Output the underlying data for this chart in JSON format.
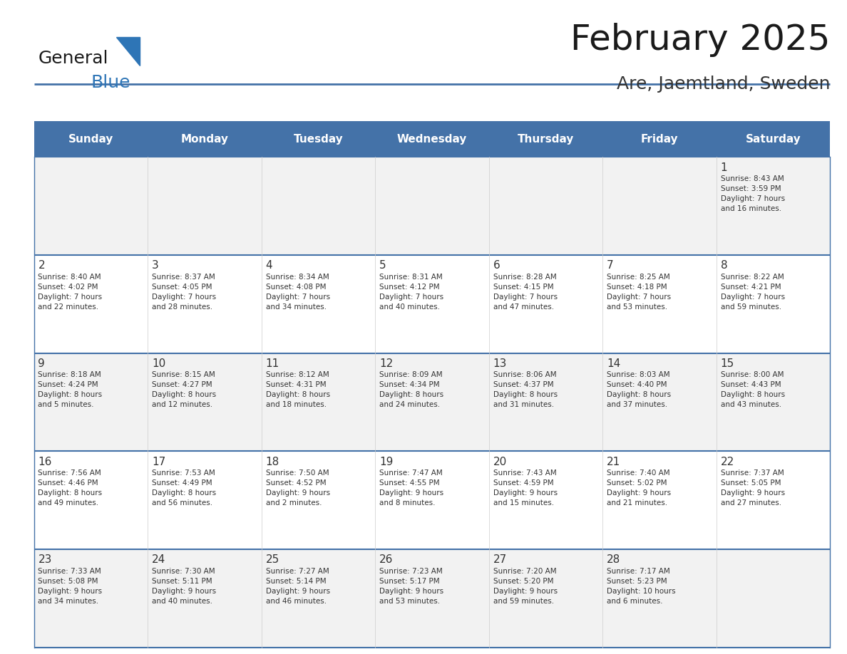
{
  "title": "February 2025",
  "subtitle": "Are, Jaemtland, Sweden",
  "logo_text_general": "General",
  "logo_text_blue": "Blue",
  "days_of_week": [
    "Sunday",
    "Monday",
    "Tuesday",
    "Wednesday",
    "Thursday",
    "Friday",
    "Saturday"
  ],
  "header_bg_color": "#4472a8",
  "header_text_color": "#ffffff",
  "cell_bg_color_light": "#f2f2f2",
  "cell_bg_color_white": "#ffffff",
  "border_color": "#4472a8",
  "day_num_color": "#333333",
  "info_text_color": "#333333",
  "title_color": "#1a1a1a",
  "subtitle_color": "#333333",
  "logo_general_color": "#1a1a1a",
  "logo_blue_color": "#2e75b6",
  "logo_triangle_color": "#2e75b6",
  "weeks": [
    {
      "days": [
        {
          "day": null,
          "info": null
        },
        {
          "day": null,
          "info": null
        },
        {
          "day": null,
          "info": null
        },
        {
          "day": null,
          "info": null
        },
        {
          "day": null,
          "info": null
        },
        {
          "day": null,
          "info": null
        },
        {
          "day": 1,
          "info": "Sunrise: 8:43 AM\nSunset: 3:59 PM\nDaylight: 7 hours\nand 16 minutes."
        }
      ]
    },
    {
      "days": [
        {
          "day": 2,
          "info": "Sunrise: 8:40 AM\nSunset: 4:02 PM\nDaylight: 7 hours\nand 22 minutes."
        },
        {
          "day": 3,
          "info": "Sunrise: 8:37 AM\nSunset: 4:05 PM\nDaylight: 7 hours\nand 28 minutes."
        },
        {
          "day": 4,
          "info": "Sunrise: 8:34 AM\nSunset: 4:08 PM\nDaylight: 7 hours\nand 34 minutes."
        },
        {
          "day": 5,
          "info": "Sunrise: 8:31 AM\nSunset: 4:12 PM\nDaylight: 7 hours\nand 40 minutes."
        },
        {
          "day": 6,
          "info": "Sunrise: 8:28 AM\nSunset: 4:15 PM\nDaylight: 7 hours\nand 47 minutes."
        },
        {
          "day": 7,
          "info": "Sunrise: 8:25 AM\nSunset: 4:18 PM\nDaylight: 7 hours\nand 53 minutes."
        },
        {
          "day": 8,
          "info": "Sunrise: 8:22 AM\nSunset: 4:21 PM\nDaylight: 7 hours\nand 59 minutes."
        }
      ]
    },
    {
      "days": [
        {
          "day": 9,
          "info": "Sunrise: 8:18 AM\nSunset: 4:24 PM\nDaylight: 8 hours\nand 5 minutes."
        },
        {
          "day": 10,
          "info": "Sunrise: 8:15 AM\nSunset: 4:27 PM\nDaylight: 8 hours\nand 12 minutes."
        },
        {
          "day": 11,
          "info": "Sunrise: 8:12 AM\nSunset: 4:31 PM\nDaylight: 8 hours\nand 18 minutes."
        },
        {
          "day": 12,
          "info": "Sunrise: 8:09 AM\nSunset: 4:34 PM\nDaylight: 8 hours\nand 24 minutes."
        },
        {
          "day": 13,
          "info": "Sunrise: 8:06 AM\nSunset: 4:37 PM\nDaylight: 8 hours\nand 31 minutes."
        },
        {
          "day": 14,
          "info": "Sunrise: 8:03 AM\nSunset: 4:40 PM\nDaylight: 8 hours\nand 37 minutes."
        },
        {
          "day": 15,
          "info": "Sunrise: 8:00 AM\nSunset: 4:43 PM\nDaylight: 8 hours\nand 43 minutes."
        }
      ]
    },
    {
      "days": [
        {
          "day": 16,
          "info": "Sunrise: 7:56 AM\nSunset: 4:46 PM\nDaylight: 8 hours\nand 49 minutes."
        },
        {
          "day": 17,
          "info": "Sunrise: 7:53 AM\nSunset: 4:49 PM\nDaylight: 8 hours\nand 56 minutes."
        },
        {
          "day": 18,
          "info": "Sunrise: 7:50 AM\nSunset: 4:52 PM\nDaylight: 9 hours\nand 2 minutes."
        },
        {
          "day": 19,
          "info": "Sunrise: 7:47 AM\nSunset: 4:55 PM\nDaylight: 9 hours\nand 8 minutes."
        },
        {
          "day": 20,
          "info": "Sunrise: 7:43 AM\nSunset: 4:59 PM\nDaylight: 9 hours\nand 15 minutes."
        },
        {
          "day": 21,
          "info": "Sunrise: 7:40 AM\nSunset: 5:02 PM\nDaylight: 9 hours\nand 21 minutes."
        },
        {
          "day": 22,
          "info": "Sunrise: 7:37 AM\nSunset: 5:05 PM\nDaylight: 9 hours\nand 27 minutes."
        }
      ]
    },
    {
      "days": [
        {
          "day": 23,
          "info": "Sunrise: 7:33 AM\nSunset: 5:08 PM\nDaylight: 9 hours\nand 34 minutes."
        },
        {
          "day": 24,
          "info": "Sunrise: 7:30 AM\nSunset: 5:11 PM\nDaylight: 9 hours\nand 40 minutes."
        },
        {
          "day": 25,
          "info": "Sunrise: 7:27 AM\nSunset: 5:14 PM\nDaylight: 9 hours\nand 46 minutes."
        },
        {
          "day": 26,
          "info": "Sunrise: 7:23 AM\nSunset: 5:17 PM\nDaylight: 9 hours\nand 53 minutes."
        },
        {
          "day": 27,
          "info": "Sunrise: 7:20 AM\nSunset: 5:20 PM\nDaylight: 9 hours\nand 59 minutes."
        },
        {
          "day": 28,
          "info": "Sunrise: 7:17 AM\nSunset: 5:23 PM\nDaylight: 10 hours\nand 6 minutes."
        },
        {
          "day": null,
          "info": null
        }
      ]
    }
  ]
}
